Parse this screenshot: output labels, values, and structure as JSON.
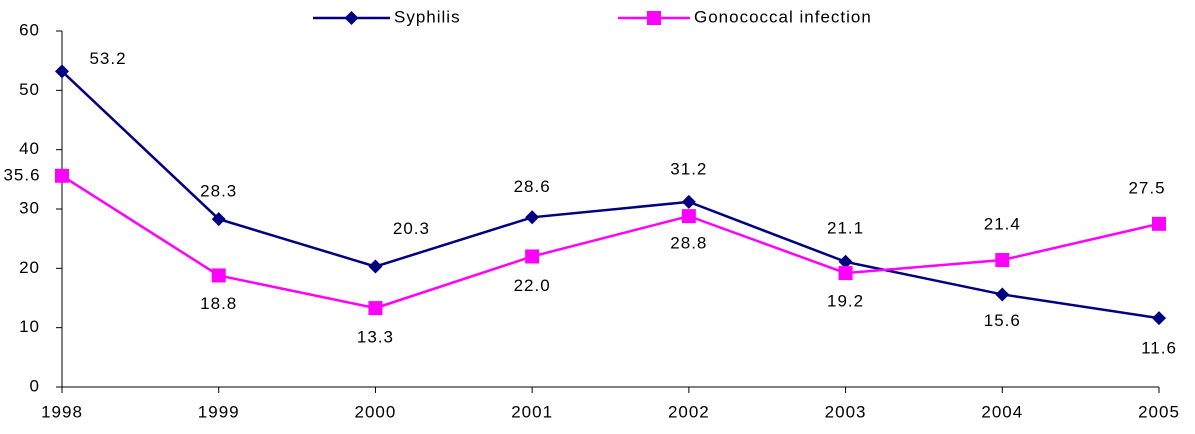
{
  "chart_data": {
    "type": "line",
    "categories": [
      "1998",
      "1999",
      "2000",
      "2001",
      "2002",
      "2003",
      "2004",
      "2005"
    ],
    "series": [
      {
        "name": "Syphilis",
        "color": "#000080",
        "marker": "diamond",
        "values": [
          53.2,
          28.3,
          20.3,
          28.6,
          31.2,
          21.1,
          15.6,
          11.6
        ],
        "value_labels": [
          "53.2",
          "28.3",
          "20.3",
          "28.6",
          "31.2",
          "21.1",
          "15.6",
          "11.6"
        ]
      },
      {
        "name": "Gonococcal infection",
        "color": "#ff00ff",
        "marker": "square",
        "values": [
          35.6,
          18.8,
          13.3,
          22.0,
          28.8,
          19.2,
          21.4,
          27.5
        ],
        "value_labels": [
          "35.6",
          "18.8",
          "13.3",
          "22.0",
          "28.8",
          "19.2",
          "21.4",
          "27.5"
        ]
      }
    ],
    "ylim": [
      0,
      60
    ],
    "yticks": [
      0,
      10,
      20,
      30,
      40,
      50,
      60
    ],
    "grid": false,
    "legend": "top"
  }
}
